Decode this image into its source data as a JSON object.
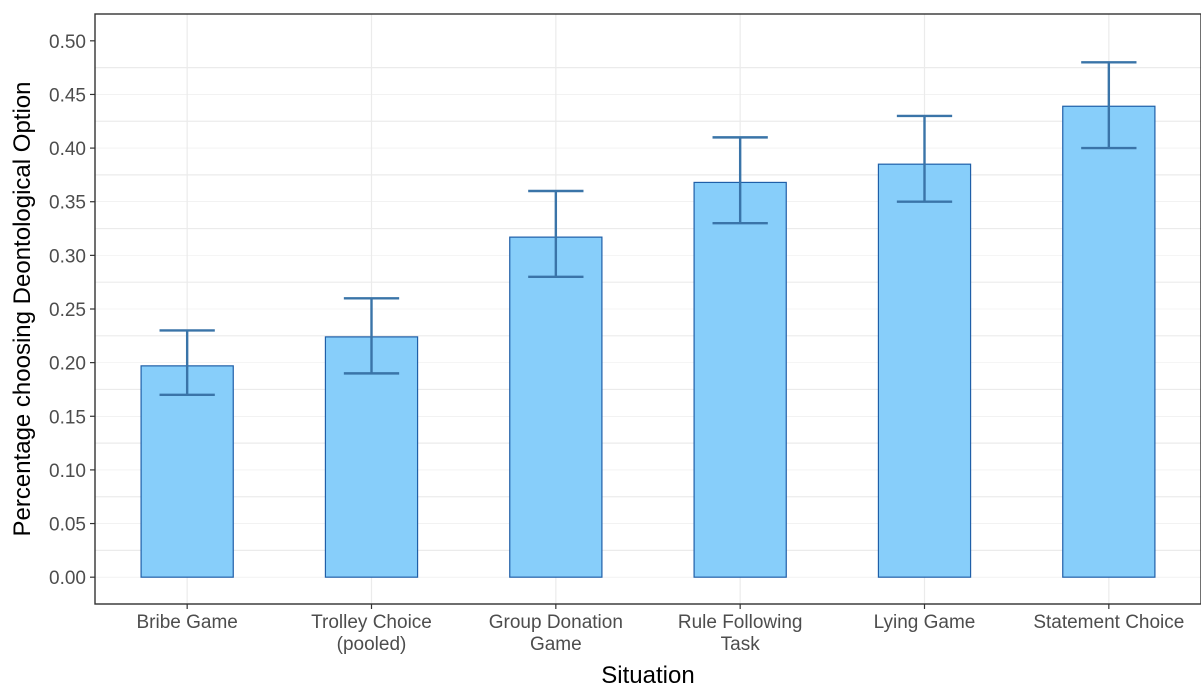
{
  "chart_data": {
    "type": "bar",
    "title": "",
    "xlabel": "Situation",
    "ylabel": "Percentage choosing Deontological Option",
    "ylim": [
      -0.025,
      0.525
    ],
    "yticks": [
      "0.00",
      "0.05",
      "0.10",
      "0.15",
      "0.20",
      "0.25",
      "0.30",
      "0.35",
      "0.40",
      "0.45",
      "0.50"
    ],
    "categories": [
      [
        "Bribe Game"
      ],
      [
        "Trolley Choice",
        "(pooled)"
      ],
      [
        "Group Donation",
        "Game"
      ],
      [
        "Rule Following",
        "Task"
      ],
      [
        "Lying Game"
      ],
      [
        "Statement Choice"
      ]
    ],
    "values": [
      0.197,
      0.224,
      0.317,
      0.368,
      0.385,
      0.439
    ],
    "error_low": [
      0.17,
      0.19,
      0.28,
      0.33,
      0.35,
      0.4
    ],
    "error_high": [
      0.23,
      0.26,
      0.36,
      0.41,
      0.43,
      0.48
    ],
    "grid": true,
    "legend": "none"
  },
  "colors": {
    "bar_fill": "#87cefa",
    "bar_stroke": "#1f5fa8",
    "error_bar": "#3a74a8",
    "grid": "#ebebeb",
    "panel_border": "#333333",
    "tick_text": "#4d4d4d"
  }
}
